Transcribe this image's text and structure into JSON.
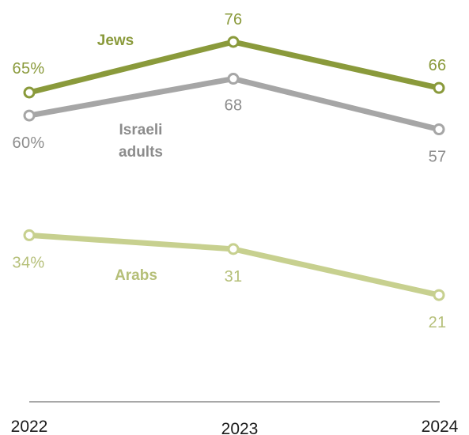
{
  "chart_data": {
    "type": "line",
    "x": [
      "2022",
      "2023",
      "2024"
    ],
    "series": [
      {
        "name": "Jews",
        "values": [
          65,
          76,
          66
        ],
        "value_labels": [
          "65%",
          "76",
          "66"
        ],
        "color": "#8a9a3b"
      },
      {
        "name": "Israeli adults",
        "name_lines": [
          "Israeli",
          "adults"
        ],
        "values": [
          60,
          68,
          57
        ],
        "value_labels": [
          "60%",
          "68",
          "57"
        ],
        "color": "#a6a6a6",
        "label_color": "#8c8c8c"
      },
      {
        "name": "Arabs",
        "values": [
          34,
          31,
          21
        ],
        "value_labels": [
          "34%",
          "31",
          "21"
        ],
        "color": "#c7d08f",
        "label_color": "#b5bf78"
      }
    ],
    "title": "",
    "xlabel": "",
    "ylabel": "",
    "ylim": [
      0,
      100
    ],
    "grid": false,
    "legend": "inline"
  }
}
